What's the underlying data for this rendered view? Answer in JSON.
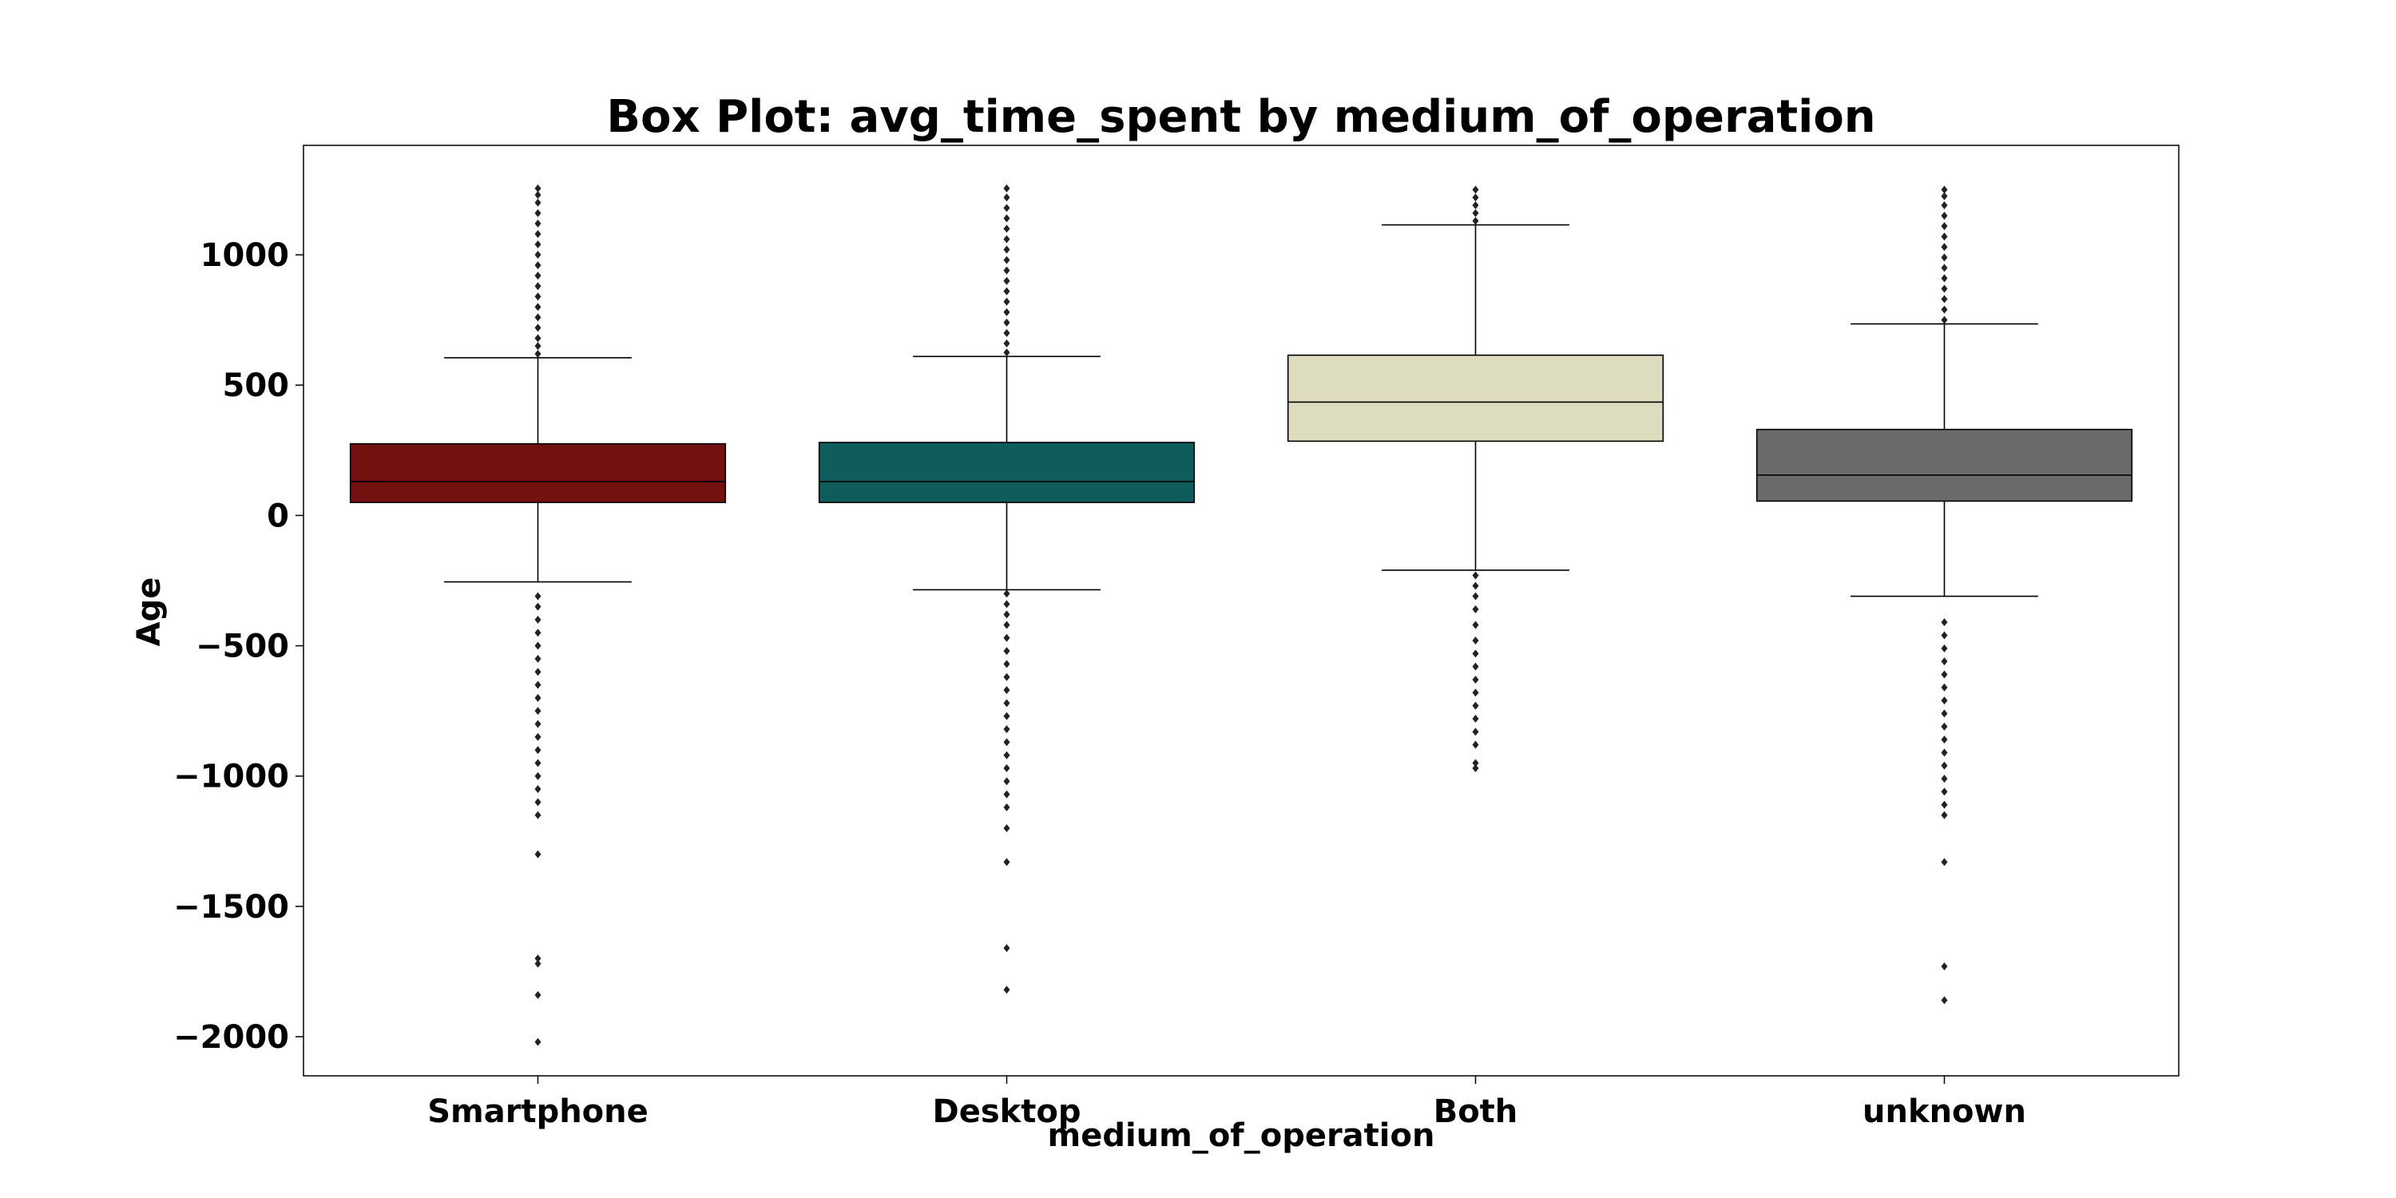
{
  "chart_data": {
    "type": "box",
    "title": "Box Plot: avg_time_spent by medium_of_operation",
    "xlabel": "medium_of_operation",
    "ylabel": "Age",
    "ylim": [
      -2150,
      1420
    ],
    "yticks": [
      1000,
      500,
      0,
      -500,
      -1000,
      -1500,
      -2000
    ],
    "ytick_labels": [
      "1000",
      "500",
      "0",
      "−500",
      "−1000",
      "−1500",
      "−2000"
    ],
    "grid": false,
    "legend": "none",
    "categories": [
      "Smartphone",
      "Desktop",
      "Both",
      "unknown"
    ],
    "boxes": [
      {
        "category": "Smartphone",
        "color": "#731111",
        "whisker_low": -255,
        "q1": 50,
        "median": 130,
        "q3": 275,
        "whisker_high": 605,
        "outliers_high": [
          620,
          650,
          680,
          720,
          760,
          800,
          840,
          880,
          920,
          960,
          1000,
          1040,
          1080,
          1120,
          1160,
          1200,
          1230,
          1255
        ],
        "outliers_low": [
          -310,
          -350,
          -400,
          -450,
          -500,
          -550,
          -600,
          -650,
          -700,
          -750,
          -800,
          -850,
          -900,
          -950,
          -1000,
          -1050,
          -1100,
          -1150,
          -1300,
          -1700,
          -1720,
          -1840,
          -2020
        ]
      },
      {
        "category": "Desktop",
        "color": "#0f5c5c",
        "whisker_low": -285,
        "q1": 50,
        "median": 130,
        "q3": 280,
        "whisker_high": 610,
        "outliers_high": [
          625,
          660,
          700,
          740,
          780,
          820,
          860,
          900,
          940,
          980,
          1020,
          1060,
          1100,
          1140,
          1180,
          1220,
          1255
        ],
        "outliers_low": [
          -300,
          -340,
          -380,
          -420,
          -470,
          -520,
          -570,
          -620,
          -670,
          -720,
          -770,
          -820,
          -870,
          -920,
          -970,
          -1020,
          -1070,
          -1120,
          -1200,
          -1330,
          -1660,
          -1820
        ]
      },
      {
        "category": "Both",
        "color": "#dedcbf",
        "whisker_low": -210,
        "q1": 285,
        "median": 435,
        "q3": 615,
        "whisker_high": 1115,
        "outliers_high": [
          1130,
          1160,
          1190,
          1220,
          1250
        ],
        "outliers_low": [
          -230,
          -270,
          -310,
          -360,
          -420,
          -480,
          -530,
          -580,
          -630,
          -680,
          -730,
          -780,
          -830,
          -880,
          -950,
          -970
        ]
      },
      {
        "category": "unknown",
        "color": "#6a6a6a",
        "whisker_low": -310,
        "q1": 55,
        "median": 155,
        "q3": 330,
        "whisker_high": 735,
        "outliers_high": [
          750,
          790,
          830,
          870,
          910,
          950,
          990,
          1030,
          1070,
          1110,
          1150,
          1190,
          1225,
          1250
        ],
        "outliers_low": [
          -410,
          -460,
          -510,
          -560,
          -610,
          -660,
          -710,
          -760,
          -810,
          -860,
          -910,
          -960,
          -1010,
          -1060,
          -1110,
          -1150,
          -1330,
          -1730,
          -1860
        ]
      }
    ]
  }
}
